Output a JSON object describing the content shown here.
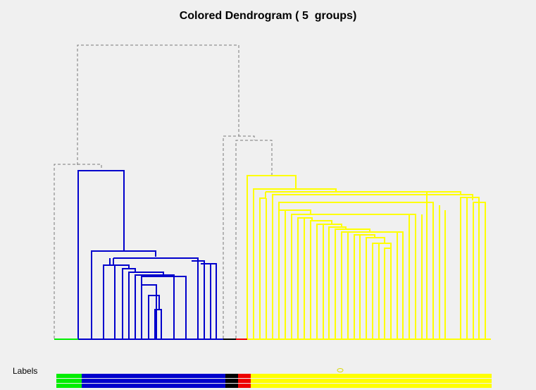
{
  "title": "Colored Dendrogram ( 5  groups)",
  "labels_caption": "Labels",
  "groups": [
    {
      "id": "green",
      "color": "#00ee00",
      "leaves": 1
    },
    {
      "id": "blue",
      "color": "#0000cc",
      "leaves": 17
    },
    {
      "id": "black",
      "color": "#000000",
      "leaves": 1
    },
    {
      "id": "red",
      "color": "#ee0000",
      "leaves": 1
    },
    {
      "id": "yellow",
      "color": "#ffff00",
      "leaves": 29
    }
  ],
  "colors": {
    "background": "#f0f0f0",
    "cut_links": "#777777"
  }
}
